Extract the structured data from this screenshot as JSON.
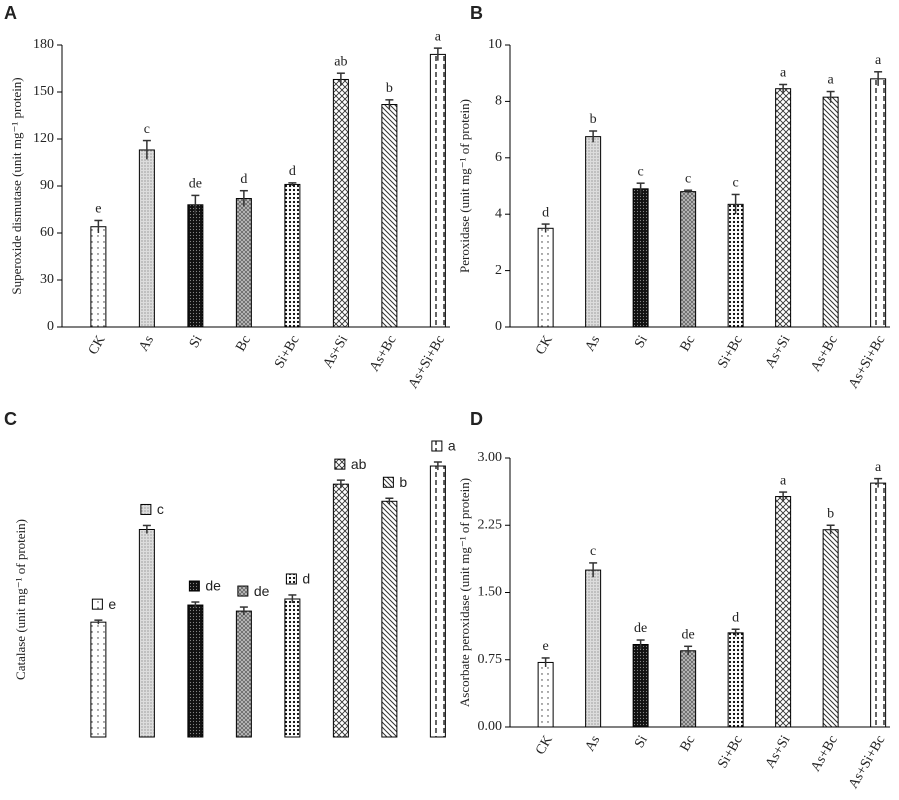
{
  "chart_data": [
    {
      "panel": "A",
      "type": "bar",
      "ylabel": "Superoxide dismutase (unit mg⁻¹ protein)",
      "categories": [
        "CK",
        "As",
        "Si",
        "Bc",
        "Si+Bc",
        "As+Si",
        "As+Bc",
        "As+Si+Bc"
      ],
      "values": [
        64,
        113,
        78,
        82,
        91,
        158,
        142,
        174
      ],
      "errors": [
        4,
        6,
        6,
        5,
        1,
        4,
        3,
        4
      ],
      "letters": [
        "e",
        "c",
        "de",
        "d",
        "d",
        "ab",
        "b",
        "a"
      ],
      "ylim": [
        0,
        180
      ],
      "yticks": [
        0,
        30,
        60,
        90,
        120,
        150,
        180
      ]
    },
    {
      "panel": "B",
      "type": "bar",
      "ylabel": "Peroxidase (unit mg⁻¹ of protein)",
      "categories": [
        "CK",
        "As",
        "Si",
        "Bc",
        "Si+Bc",
        "As+Si",
        "As+Bc",
        "As+Si+Bc"
      ],
      "values": [
        3.5,
        6.75,
        4.9,
        4.8,
        4.35,
        8.45,
        8.15,
        8.8
      ],
      "errors": [
        0.15,
        0.2,
        0.2,
        0.05,
        0.35,
        0.15,
        0.2,
        0.25
      ],
      "letters": [
        "d",
        "b",
        "c",
        "c",
        "c",
        "a",
        "a",
        "a"
      ],
      "ylim": [
        0,
        10
      ],
      "yticks": [
        0,
        2,
        4,
        6,
        8,
        10
      ]
    },
    {
      "panel": "C",
      "type": "bar",
      "ylabel": "Catalase (unit mg⁻¹ of protein)",
      "categories": [
        null,
        null,
        null,
        null,
        null,
        null,
        null,
        null
      ],
      "values": [
        114,
        206,
        131,
        125,
        137,
        251,
        234,
        269
      ],
      "errors": [
        2,
        4,
        3,
        4,
        4,
        4,
        3,
        4
      ],
      "letters": [
        "e",
        "c",
        "de",
        "de",
        "d",
        "ab",
        "b",
        "a"
      ]
    },
    {
      "panel": "D",
      "type": "bar",
      "ylabel": "Ascorbate peroxidase (unit mg⁻¹ of protein)",
      "categories": [
        "CK",
        "As",
        "Si",
        "Bc",
        "Si+Bc",
        "As+Si",
        "As+Bc",
        "As+Si+Bc"
      ],
      "values": [
        0.72,
        1.75,
        0.92,
        0.85,
        1.05,
        2.57,
        2.2,
        2.72
      ],
      "errors": [
        0.05,
        0.08,
        0.05,
        0.05,
        0.04,
        0.05,
        0.05,
        0.05
      ],
      "letters": [
        "e",
        "c",
        "de",
        "de",
        "d",
        "a",
        "b",
        "a"
      ],
      "ylim": [
        0,
        3
      ],
      "yticks": [
        {
          "value": 0,
          "label": "0.00"
        },
        {
          "value": 0.75,
          "label": "0.75"
        },
        {
          "value": 1.5,
          "label": "1.50"
        },
        {
          "value": 2.25,
          "label": "2.25"
        },
        {
          "value": 3,
          "label": "3.00"
        }
      ]
    }
  ]
}
